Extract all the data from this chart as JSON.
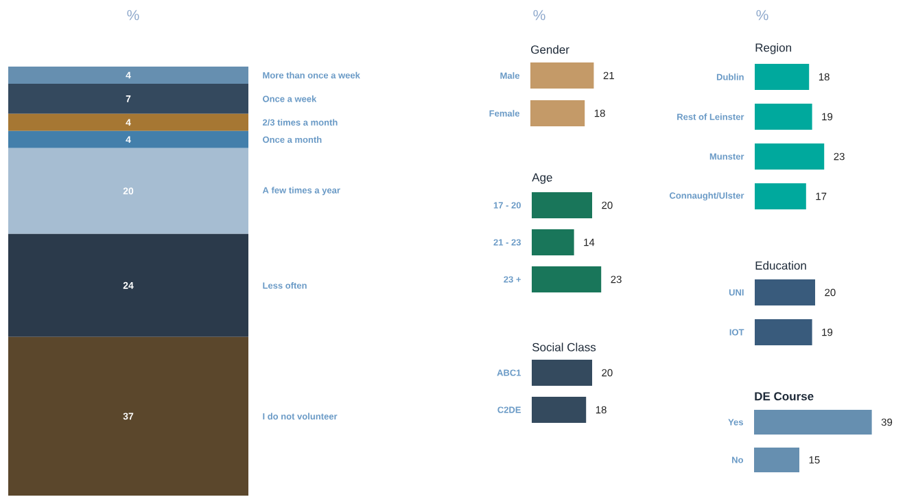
{
  "chart_data": [
    {
      "type": "bar",
      "stacked": true,
      "annotations": [
        "%"
      ],
      "categories": [
        null
      ],
      "data_labels": true,
      "series": [
        {
          "name": "I do not volunteer",
          "color": "#5b472c",
          "values": [
            37
          ]
        },
        {
          "name": "Less often",
          "color": "#2b3a4b",
          "values": [
            24
          ]
        },
        {
          "name": "A few times a year",
          "color": "#a6bdd2",
          "values": [
            20
          ]
        },
        {
          "name": "Once a month",
          "color": "#437fab",
          "values": [
            4
          ]
        },
        {
          "name": "2/3 times a month",
          "color": "#a67733",
          "values": [
            4
          ]
        },
        {
          "name": "Once a week",
          "color": "#34495e",
          "values": [
            7
          ]
        },
        {
          "name": "More than once a week",
          "color": "#668fb0",
          "values": [
            4
          ]
        }
      ]
    },
    {
      "type": "bar",
      "orientation": "horizontal",
      "title": "Gender",
      "annotations": [
        "%"
      ],
      "categories": [
        "Male",
        "Female"
      ],
      "values": [
        21,
        18
      ],
      "color": "#c49a68",
      "data_labels": true
    },
    {
      "type": "bar",
      "orientation": "horizontal",
      "title": "Age",
      "categories": [
        "17 - 20",
        "21 - 23",
        "23 +"
      ],
      "values": [
        20,
        14,
        23
      ],
      "color": "#19765a",
      "data_labels": true
    },
    {
      "type": "bar",
      "orientation": "horizontal",
      "title": "Social Class",
      "categories": [
        "ABC1",
        "C2DE"
      ],
      "values": [
        20,
        18
      ],
      "color": "#344a5e",
      "data_labels": true
    },
    {
      "type": "bar",
      "orientation": "horizontal",
      "title": "Region",
      "annotations": [
        "%"
      ],
      "categories": [
        "Dublin",
        "Rest of Leinster",
        "Munster",
        "Connaught/Ulster"
      ],
      "values": [
        18,
        19,
        23,
        17
      ],
      "color": "#00a99d",
      "data_labels": true
    },
    {
      "type": "bar",
      "orientation": "horizontal",
      "title": "Education",
      "categories": [
        "UNI",
        "IOT"
      ],
      "values": [
        20,
        19
      ],
      "color": "#395b7c",
      "data_labels": true
    },
    {
      "type": "bar",
      "orientation": "horizontal",
      "title": "DE Course",
      "categories": [
        "Yes",
        "No"
      ],
      "values": [
        39,
        15
      ],
      "color": "#668fb0",
      "data_labels": true
    }
  ]
}
